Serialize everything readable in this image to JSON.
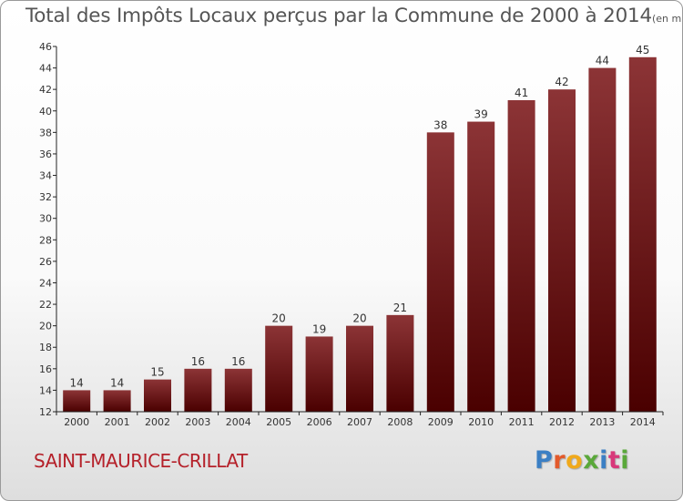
{
  "title": "Total des Impôts Locaux perçus par la Commune de 2000 à 2014",
  "title_unit": "(en milliers d'€)",
  "commune": "SAINT-MAURICE-CRILLAT",
  "logo": {
    "letters": [
      "P",
      "r",
      "o",
      "x",
      "i",
      "t",
      "i"
    ],
    "colors": [
      "#3b7fc4",
      "#e35a2b",
      "#f0a91b",
      "#5aa83a",
      "#3b7fc4",
      "#d8387a",
      "#5aa83a"
    ]
  },
  "colors": {
    "bar_top": "#8c3436",
    "bar_bottom": "#4a0000",
    "axis": "#222222",
    "grid": "#dddddd",
    "title": "#555555",
    "commune": "#b5212a"
  },
  "chart_data": {
    "type": "bar",
    "categories": [
      "2000",
      "2001",
      "2002",
      "2003",
      "2004",
      "2005",
      "2006",
      "2007",
      "2008",
      "2009",
      "2010",
      "2011",
      "2012",
      "2013",
      "2014"
    ],
    "values": [
      14,
      14,
      15,
      16,
      16,
      20,
      19,
      20,
      21,
      38,
      39,
      41,
      42,
      44,
      45
    ],
    "title": "Total des Impôts Locaux perçus par la Commune de 2000 à 2014",
    "xlabel": "",
    "ylabel": "",
    "ylim": [
      12,
      46
    ],
    "yticks": [
      12,
      14,
      16,
      18,
      20,
      22,
      24,
      26,
      28,
      30,
      32,
      34,
      36,
      38,
      40,
      42,
      44,
      46
    ],
    "grid": false,
    "data_labels": true
  }
}
